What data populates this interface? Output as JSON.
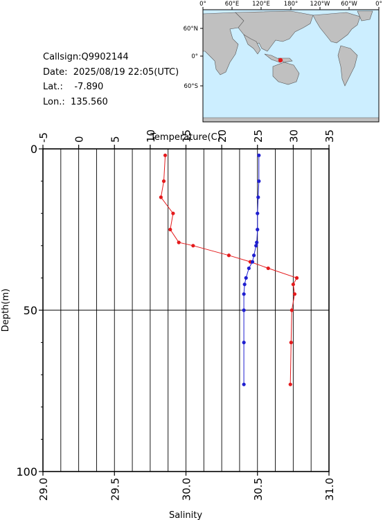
{
  "info": {
    "callsign_label": "Callsign:",
    "callsign": "Q9902144",
    "date_label": "Date:",
    "date": "2025/08/19 22:05(UTC)",
    "lat_label": "Lat.:",
    "lat": "-7.890",
    "lon_label": "Lon.:",
    "lon": "135.560"
  },
  "map": {
    "top_ticks": [
      "0°",
      "60°E",
      "120°E",
      "180°",
      "120°W",
      "60°W",
      "0°"
    ],
    "left_ticks": [
      "60°N",
      "0°",
      "60°S"
    ],
    "marker_color": "#e41a1c",
    "ocean_color": "#cceeff",
    "land_color": "#c0c0c0"
  },
  "chart_data": {
    "type": "line",
    "y_axis": {
      "label": "Depth(m)",
      "range": [
        0,
        100
      ],
      "ticks": [
        "0",
        "50",
        "100"
      ],
      "inverted": true
    },
    "top_axis": {
      "label": "Temperature(C)",
      "range": [
        -5,
        35
      ],
      "ticks": [
        "-5",
        "0",
        "5",
        "10",
        "15",
        "20",
        "25",
        "30",
        "35"
      ]
    },
    "bottom_axis": {
      "label": "Salinity",
      "range": [
        29.0,
        31.0
      ],
      "ticks": [
        "29.0",
        "29.5",
        "30.0",
        "30.5",
        "31.0"
      ]
    },
    "grid": {
      "vertical_lines": true,
      "horizontal_lines": [
        50
      ]
    },
    "series": [
      {
        "color": "#e41a1c",
        "axis": "top",
        "points": [
          [
            12.1,
            2
          ],
          [
            11.9,
            10
          ],
          [
            11.5,
            15
          ],
          [
            13.2,
            20
          ],
          [
            12.8,
            25
          ],
          [
            14.0,
            29
          ],
          [
            16.0,
            30
          ],
          [
            21.0,
            33
          ],
          [
            24.0,
            35
          ],
          [
            26.5,
            37
          ],
          [
            30.5,
            40
          ],
          [
            30.0,
            42
          ],
          [
            30.2,
            45
          ],
          [
            29.8,
            50
          ],
          [
            29.7,
            60
          ],
          [
            29.6,
            73
          ]
        ]
      },
      {
        "color": "#1f1fd0",
        "axis": "bottom",
        "points": [
          [
            30.51,
            2
          ],
          [
            30.51,
            10
          ],
          [
            30.505,
            15
          ],
          [
            30.5,
            20
          ],
          [
            30.5,
            25
          ],
          [
            30.495,
            29
          ],
          [
            30.49,
            30
          ],
          [
            30.475,
            33
          ],
          [
            30.465,
            35
          ],
          [
            30.44,
            37
          ],
          [
            30.42,
            40
          ],
          [
            30.41,
            42
          ],
          [
            30.405,
            45
          ],
          [
            30.405,
            50
          ],
          [
            30.405,
            60
          ],
          [
            30.405,
            73
          ]
        ]
      }
    ]
  }
}
